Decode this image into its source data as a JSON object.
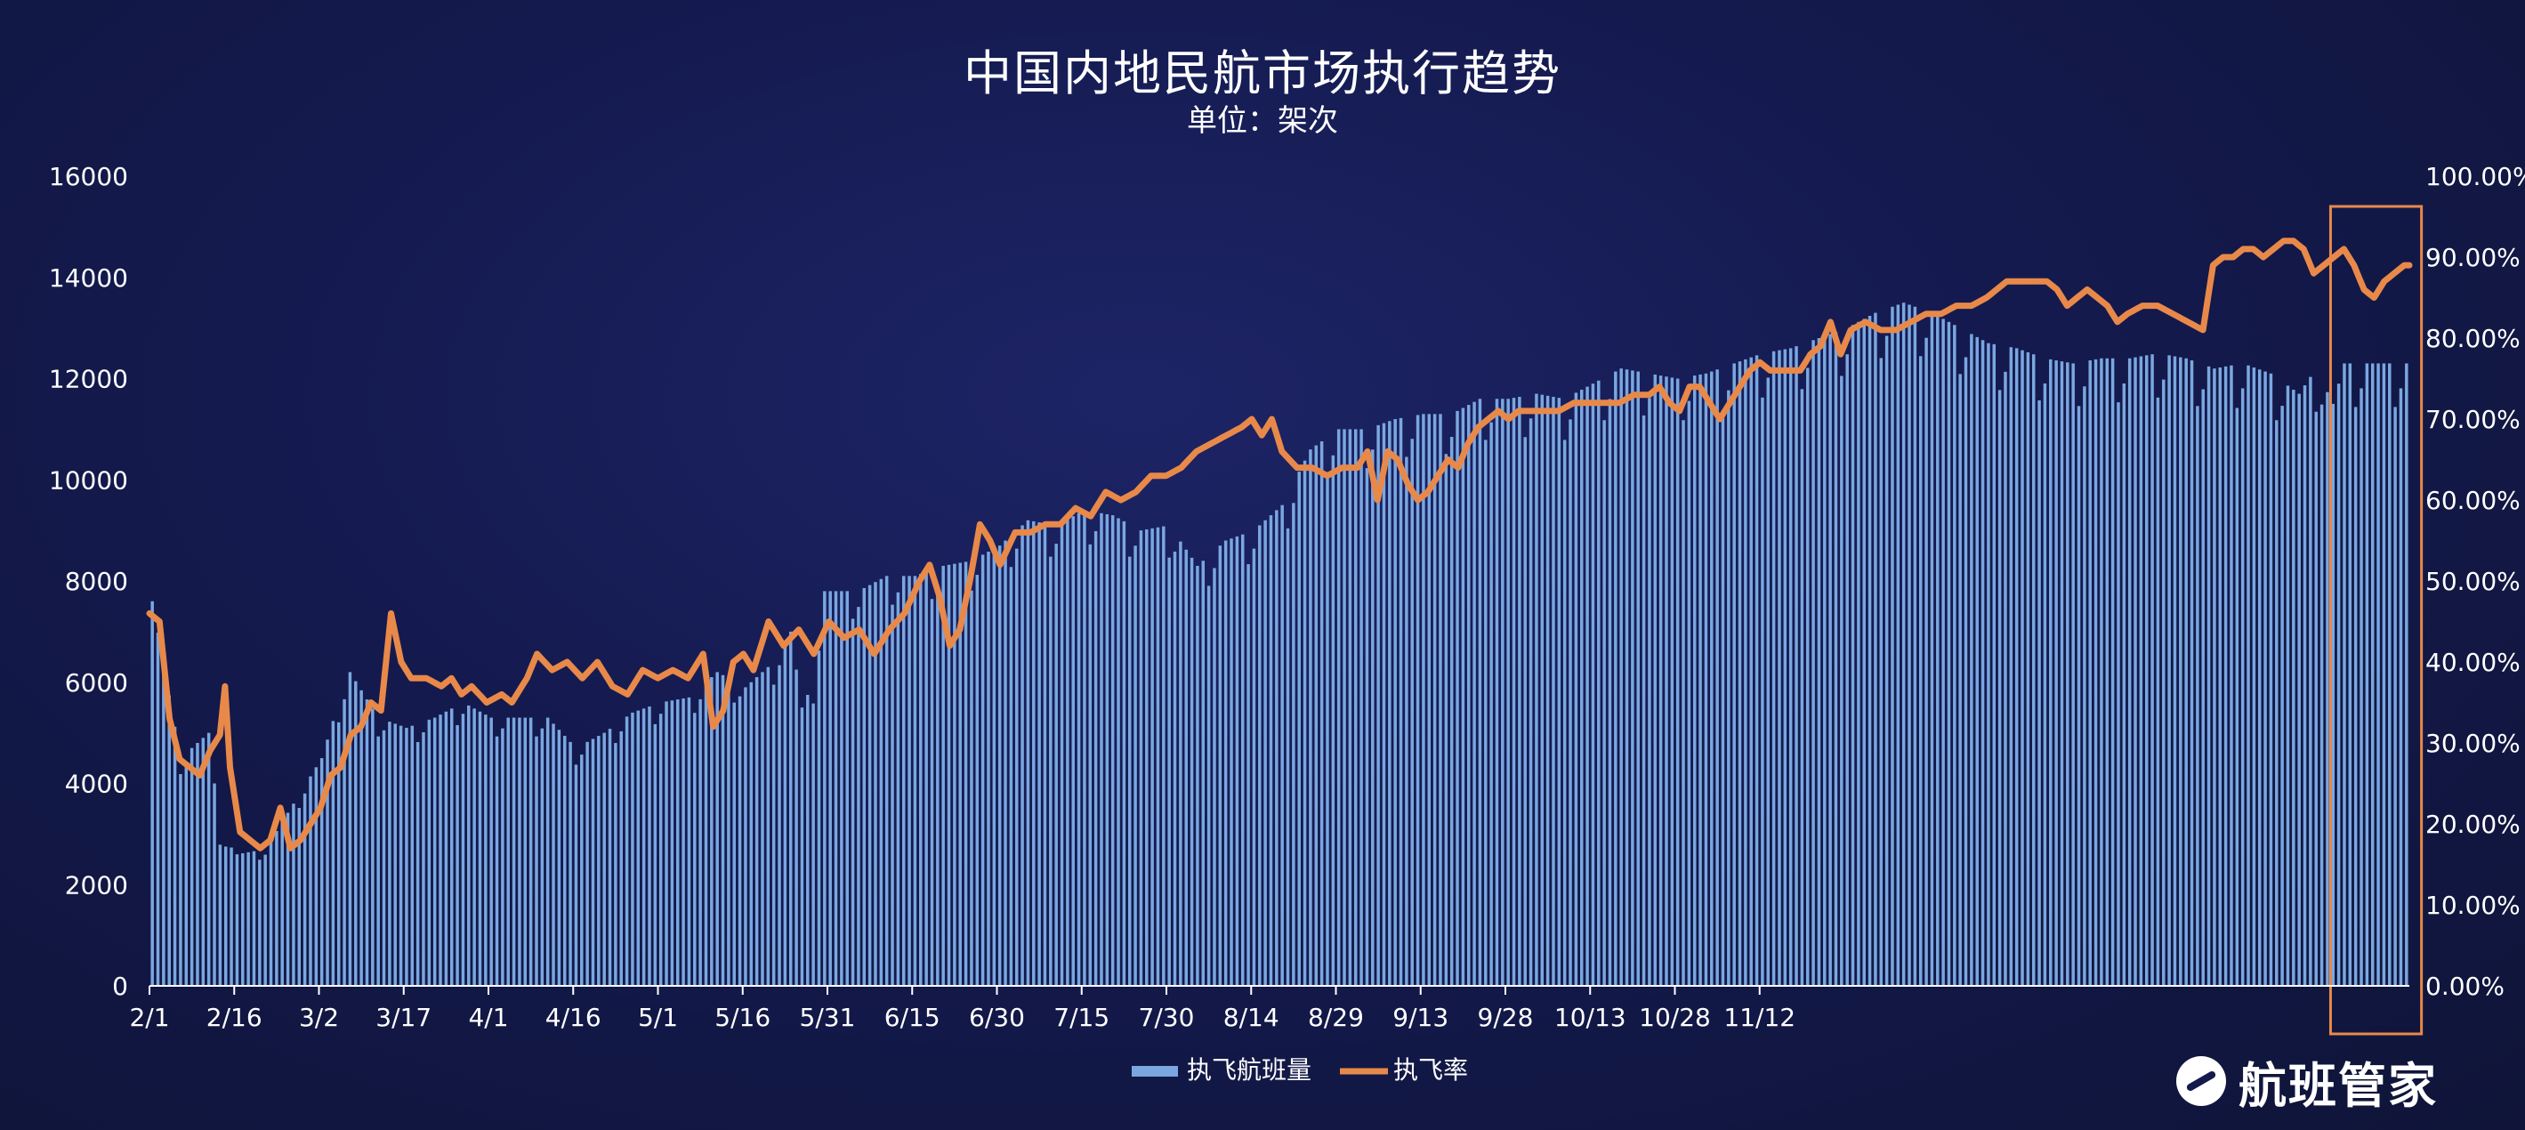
{
  "chart_data": {
    "type": "bar",
    "title": "中国内地民航市场执行趋势",
    "subtitle": "单位：架次",
    "x_tick_labels": [
      "2/1",
      "2/16",
      "3/2",
      "3/17",
      "4/1",
      "4/16",
      "5/1",
      "5/16",
      "5/31",
      "6/15",
      "6/30",
      "7/15",
      "7/30",
      "8/14",
      "8/29",
      "9/13",
      "9/28",
      "10/13",
      "10/28",
      "11/12"
    ],
    "y_left_ticks": [
      "0",
      "2000",
      "4000",
      "6000",
      "8000",
      "10000",
      "12000",
      "14000",
      "16000"
    ],
    "y_right_ticks": [
      "0.00%",
      "10.00%",
      "20.00%",
      "30.00%",
      "40.00%",
      "50.00%",
      "60.00%",
      "70.00%",
      "80.00%",
      "90.00%",
      "100.00%"
    ],
    "y_left_lim": [
      0,
      16000
    ],
    "y_right_lim": [
      0,
      100
    ],
    "grid": false,
    "legend_position": "bottom-center",
    "series": [
      {
        "name": "执飞航班量",
        "type": "bar",
        "axis": "left",
        "color": "#7aa7e0",
        "keypoints": [
          [
            0,
            7600
          ],
          [
            5,
            4500
          ],
          [
            10,
            5000
          ],
          [
            12,
            3000
          ],
          [
            15,
            2600
          ],
          [
            20,
            2700
          ],
          [
            25,
            3600
          ],
          [
            30,
            4500
          ],
          [
            33,
            5600
          ],
          [
            35,
            6200
          ],
          [
            40,
            5300
          ],
          [
            45,
            5100
          ],
          [
            50,
            5300
          ],
          [
            55,
            5600
          ],
          [
            60,
            5300
          ],
          [
            65,
            5300
          ],
          [
            70,
            5300
          ],
          [
            75,
            4700
          ],
          [
            80,
            5000
          ],
          [
            85,
            5400
          ],
          [
            90,
            5600
          ],
          [
            95,
            5700
          ],
          [
            100,
            6200
          ],
          [
            105,
            5900
          ],
          [
            110,
            6400
          ],
          [
            113,
            7000
          ],
          [
            115,
            5500
          ],
          [
            117,
            6000
          ],
          [
            119,
            7800
          ],
          [
            125,
            7800
          ],
          [
            130,
            8100
          ],
          [
            135,
            8100
          ],
          [
            140,
            8300
          ],
          [
            145,
            8400
          ],
          [
            150,
            8700
          ],
          [
            155,
            9200
          ],
          [
            160,
            9100
          ],
          [
            165,
            9400
          ],
          [
            170,
            9300
          ],
          [
            175,
            9000
          ],
          [
            180,
            9100
          ],
          [
            185,
            8300
          ],
          [
            190,
            8800
          ],
          [
            195,
            9000
          ],
          [
            200,
            9500
          ],
          [
            205,
            10600
          ],
          [
            210,
            11000
          ],
          [
            215,
            11000
          ],
          [
            220,
            11200
          ],
          [
            225,
            11300
          ],
          [
            230,
            11300
          ],
          [
            235,
            11600
          ],
          [
            240,
            11600
          ],
          [
            245,
            11700
          ],
          [
            250,
            11600
          ],
          [
            255,
            11900
          ],
          [
            260,
            12200
          ],
          [
            265,
            12100
          ],
          [
            270,
            12000
          ],
          [
            275,
            12100
          ],
          [
            280,
            12300
          ],
          [
            285,
            12500
          ],
          [
            290,
            12600
          ],
          [
            295,
            12800
          ],
          [
            300,
            13000
          ],
          [
            305,
            13300
          ],
          [
            310,
            13500
          ],
          [
            315,
            13300
          ],
          [
            320,
            13000
          ],
          [
            325,
            12700
          ],
          [
            330,
            12600
          ],
          [
            335,
            12400
          ],
          [
            340,
            12300
          ],
          [
            345,
            12400
          ],
          [
            350,
            12400
          ],
          [
            355,
            12500
          ],
          [
            360,
            12400
          ],
          [
            365,
            12200
          ],
          [
            370,
            12300
          ],
          [
            375,
            12100
          ],
          [
            380,
            11700
          ],
          [
            383,
            12200
          ],
          [
            386,
            11500
          ],
          [
            388,
            12300
          ]
        ]
      },
      {
        "name": "执飞率",
        "type": "line",
        "axis": "right",
        "color": "#e8894a",
        "keypoints": [
          [
            0,
            46
          ],
          [
            2,
            45
          ],
          [
            4,
            33
          ],
          [
            6,
            28
          ],
          [
            8,
            27
          ],
          [
            10,
            26
          ],
          [
            12,
            29
          ],
          [
            14,
            31
          ],
          [
            15,
            37
          ],
          [
            16,
            27
          ],
          [
            18,
            19
          ],
          [
            20,
            18
          ],
          [
            22,
            17
          ],
          [
            24,
            18
          ],
          [
            26,
            22
          ],
          [
            28,
            17
          ],
          [
            30,
            18
          ],
          [
            32,
            20
          ],
          [
            34,
            22
          ],
          [
            36,
            26
          ],
          [
            38,
            27
          ],
          [
            40,
            31
          ],
          [
            42,
            32
          ],
          [
            44,
            35
          ],
          [
            46,
            34
          ],
          [
            48,
            46
          ],
          [
            50,
            40
          ],
          [
            52,
            38
          ],
          [
            55,
            38
          ],
          [
            58,
            37
          ],
          [
            60,
            38
          ],
          [
            62,
            36
          ],
          [
            64,
            37
          ],
          [
            67,
            35
          ],
          [
            70,
            36
          ],
          [
            72,
            35
          ],
          [
            75,
            38
          ],
          [
            77,
            41
          ],
          [
            80,
            39
          ],
          [
            83,
            40
          ],
          [
            86,
            38
          ],
          [
            89,
            40
          ],
          [
            92,
            37
          ],
          [
            95,
            36
          ],
          [
            98,
            39
          ],
          [
            101,
            38
          ],
          [
            104,
            39
          ],
          [
            107,
            38
          ],
          [
            110,
            41
          ],
          [
            112,
            32
          ],
          [
            114,
            34
          ],
          [
            116,
            40
          ],
          [
            118,
            41
          ],
          [
            120,
            39
          ],
          [
            123,
            45
          ],
          [
            126,
            42
          ],
          [
            129,
            44
          ],
          [
            132,
            41
          ],
          [
            135,
            45
          ],
          [
            138,
            43
          ],
          [
            141,
            44
          ],
          [
            144,
            41
          ],
          [
            147,
            44
          ],
          [
            150,
            46
          ],
          [
            153,
            50
          ],
          [
            155,
            52
          ],
          [
            157,
            48
          ],
          [
            159,
            42
          ],
          [
            161,
            44
          ],
          [
            163,
            50
          ],
          [
            165,
            57
          ],
          [
            167,
            55
          ],
          [
            169,
            52
          ],
          [
            172,
            56
          ],
          [
            175,
            56
          ],
          [
            178,
            57
          ],
          [
            181,
            57
          ],
          [
            184,
            59
          ],
          [
            187,
            58
          ],
          [
            190,
            61
          ],
          [
            193,
            60
          ],
          [
            196,
            61
          ],
          [
            199,
            63
          ],
          [
            202,
            63
          ],
          [
            205,
            64
          ],
          [
            208,
            66
          ],
          [
            211,
            67
          ],
          [
            214,
            68
          ],
          [
            217,
            69
          ],
          [
            219,
            70
          ],
          [
            221,
            68
          ],
          [
            223,
            70
          ],
          [
            225,
            66
          ],
          [
            228,
            64
          ],
          [
            231,
            64
          ],
          [
            234,
            63
          ],
          [
            237,
            64
          ],
          [
            240,
            64
          ],
          [
            242,
            66
          ],
          [
            244,
            60
          ],
          [
            246,
            66
          ],
          [
            248,
            65
          ],
          [
            250,
            62
          ],
          [
            252,
            60
          ],
          [
            254,
            61
          ],
          [
            256,
            63
          ],
          [
            258,
            65
          ],
          [
            260,
            64
          ],
          [
            262,
            67
          ],
          [
            264,
            69
          ],
          [
            266,
            70
          ],
          [
            268,
            71
          ],
          [
            270,
            70
          ],
          [
            272,
            71
          ],
          [
            274,
            71
          ],
          [
            277,
            71
          ],
          [
            280,
            71
          ],
          [
            283,
            72
          ],
          [
            286,
            72
          ],
          [
            289,
            72
          ],
          [
            292,
            72
          ],
          [
            295,
            73
          ],
          [
            298,
            73
          ],
          [
            300,
            74
          ],
          [
            302,
            72
          ],
          [
            304,
            71
          ],
          [
            306,
            74
          ],
          [
            308,
            74
          ],
          [
            310,
            72
          ],
          [
            312,
            70
          ],
          [
            314,
            72
          ],
          [
            316,
            74
          ],
          [
            318,
            76
          ],
          [
            320,
            77
          ],
          [
            322,
            76
          ],
          [
            325,
            76
          ],
          [
            328,
            76
          ],
          [
            330,
            78
          ],
          [
            332,
            79
          ],
          [
            334,
            82
          ],
          [
            336,
            78
          ],
          [
            338,
            81
          ],
          [
            341,
            82
          ],
          [
            344,
            81
          ],
          [
            347,
            81
          ],
          [
            350,
            82
          ],
          [
            353,
            83
          ],
          [
            356,
            83
          ],
          [
            359,
            84
          ],
          [
            362,
            84
          ],
          [
            365,
            85
          ],
          [
            367,
            86
          ],
          [
            369,
            87
          ],
          [
            371,
            87
          ],
          [
            373,
            87
          ],
          [
            375,
            87
          ],
          [
            377,
            87
          ],
          [
            379,
            86
          ],
          [
            381,
            84
          ],
          [
            383,
            85
          ],
          [
            385,
            86
          ],
          [
            387,
            85
          ],
          [
            389,
            84
          ],
          [
            391,
            82
          ],
          [
            393,
            83
          ],
          [
            396,
            84
          ],
          [
            399,
            84
          ],
          [
            402,
            83
          ],
          [
            405,
            82
          ],
          [
            408,
            81
          ],
          [
            410,
            89
          ],
          [
            412,
            90
          ],
          [
            414,
            90
          ],
          [
            416,
            91
          ],
          [
            418,
            91
          ],
          [
            420,
            90
          ],
          [
            422,
            91
          ],
          [
            424,
            92
          ],
          [
            426,
            92
          ],
          [
            428,
            91
          ],
          [
            430,
            88
          ],
          [
            432,
            89
          ],
          [
            434,
            90
          ],
          [
            436,
            91
          ],
          [
            438,
            89
          ],
          [
            440,
            86
          ],
          [
            442,
            85
          ],
          [
            444,
            87
          ],
          [
            446,
            88
          ],
          [
            448,
            89
          ]
        ]
      }
    ],
    "highlight_region": {
      "x_from_index": 387,
      "x_to_index": 399,
      "color": "#e8894a"
    },
    "legend": [
      "执飞航班量",
      "执飞率"
    ]
  },
  "brand": {
    "name": "航班管家"
  }
}
